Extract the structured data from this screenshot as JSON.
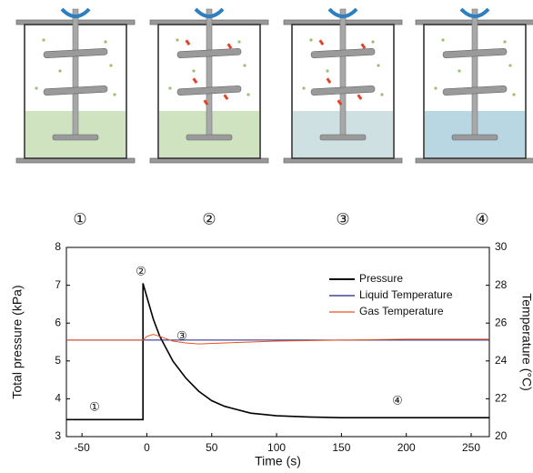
{
  "chart_data": {
    "type": "line",
    "panel_labels": [
      "①",
      "②",
      "③",
      "④"
    ],
    "xlabel": "Time (s)",
    "ylabel": "Total pressure (kPa)",
    "y2label": "Temperature (°C)",
    "xlim": [
      -62,
      264
    ],
    "xticks": [
      -50,
      0,
      50,
      100,
      150,
      200,
      250
    ],
    "ylim": [
      3,
      8
    ],
    "yticks": [
      3,
      4,
      5,
      6,
      7,
      8
    ],
    "y2lim": [
      20,
      30
    ],
    "y2ticks": [
      20,
      22,
      24,
      26,
      28,
      30
    ],
    "legend": "upper right",
    "series": [
      {
        "name": "Pressure",
        "color": "#000000",
        "x": [
          -62,
          -3,
          -3,
          0,
          5,
          10,
          20,
          30,
          40,
          50,
          60,
          80,
          100,
          125,
          150,
          200,
          264
        ],
        "values": [
          3.45,
          3.45,
          7.05,
          6.7,
          6.1,
          5.65,
          5.0,
          4.55,
          4.2,
          3.95,
          3.8,
          3.62,
          3.55,
          3.52,
          3.5,
          3.5,
          3.5
        ]
      },
      {
        "name": "Liquid Temperature",
        "color": "#1a237e",
        "axis": "y2",
        "x": [
          -62,
          264
        ],
        "values": [
          25.1,
          25.1
        ]
      },
      {
        "name": "Gas Temperature",
        "color": "#e8531f",
        "axis": "y2",
        "x": [
          -62,
          -3,
          0,
          5,
          10,
          20,
          30,
          40,
          60,
          80,
          100,
          150,
          200,
          264
        ],
        "values": [
          25.1,
          25.1,
          25.3,
          25.4,
          25.3,
          25.05,
          24.95,
          24.9,
          24.95,
          25.0,
          25.05,
          25.1,
          25.15,
          25.15
        ]
      }
    ],
    "annotations": [
      "①",
      "②",
      "③",
      "④"
    ]
  }
}
